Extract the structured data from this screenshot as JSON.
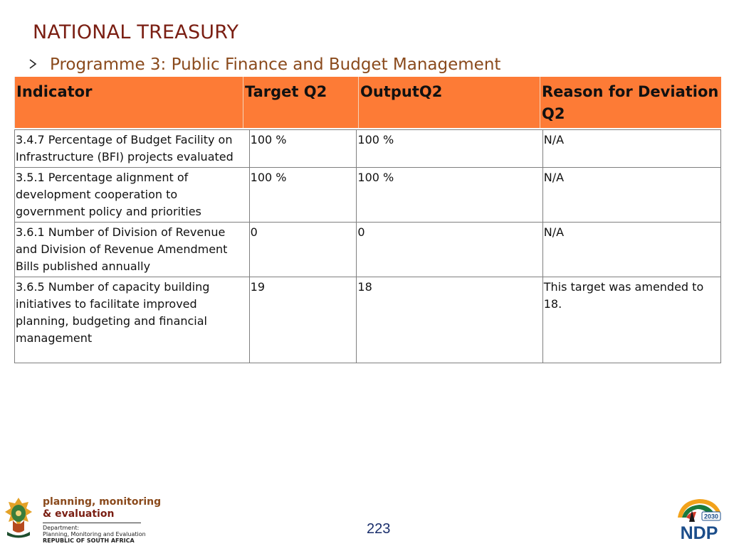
{
  "header": {
    "title": "NATIONAL TREASURY",
    "subtitle": "Programme 3: Public Finance and Budget Management",
    "bullet_icon": "arrow-bullet-icon"
  },
  "table": {
    "columns": [
      "Indicator",
      "Target Q2",
      "OutputQ2",
      "Reason for Deviation Q2"
    ],
    "rows": [
      {
        "indicator": "3.4.7 Percentage of Budget Facility on Infrastructure (BFI) projects evaluated",
        "target": "100 %",
        "output": "100 %",
        "reason": "N/A"
      },
      {
        "indicator": "3.5.1 Percentage alignment of development cooperation to government policy and priorities",
        "target": "100 %",
        "output": "100 %",
        "reason": "N/A"
      },
      {
        "indicator": "3.6.1 Number of Division of Revenue and Division of Revenue Amendment Bills published annually",
        "target": "0",
        "output": "0",
        "reason": "N/A"
      },
      {
        "indicator": "3.6.5 Number of capacity building initiatives to facilitate improved planning, budgeting and financial management",
        "target": "19",
        "output": "18",
        "reason": "This target was amended to 18."
      }
    ],
    "header_color": "#fd7b36"
  },
  "footer": {
    "dpme_line1": "planning, monitoring",
    "dpme_line2": "& evaluation",
    "dept_label": "Department:",
    "dept_name": "Planning, Monitoring and Evaluation",
    "country": "REPUBLIC OF SOUTH AFRICA",
    "page_number": "223",
    "ndp_year": "2030",
    "ndp_text": "NDP"
  }
}
